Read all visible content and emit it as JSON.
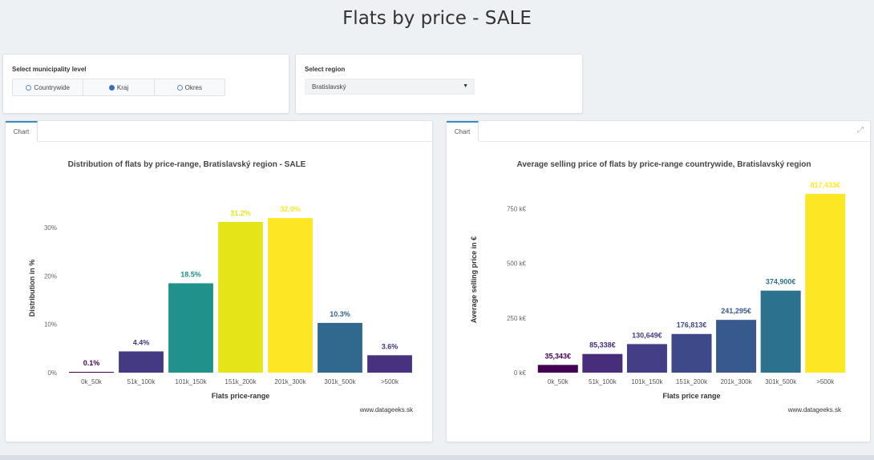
{
  "page_title": "Flats by price - SALE",
  "municipality": {
    "label": "Select municipality level",
    "options": [
      "Countrywide",
      "Kraj",
      "Okres"
    ],
    "selected": "Kraj"
  },
  "region": {
    "label": "Select region",
    "value": "Bratislavský"
  },
  "tabs": {
    "left": "Chart",
    "right": "Chart"
  },
  "chart_data": [
    {
      "type": "bar",
      "title": "Distribution of flats by price-range, Bratislavský region - SALE",
      "xlabel": "Flats price-range",
      "ylabel": "Distribution in %",
      "categories": [
        "0k_50k",
        "51k_100k",
        "101k_150k",
        "151k_200k",
        "201k_300k",
        "301k_500k",
        ">500k"
      ],
      "values": [
        0.1,
        4.4,
        18.5,
        31.2,
        32.0,
        10.3,
        3.6
      ],
      "value_labels": [
        "0.1%",
        "4.4%",
        "18.5%",
        "31.2%",
        "32.0%",
        "10.3%",
        "3.6%"
      ],
      "colors": [
        "#440154",
        "#443983",
        "#21918c",
        "#e5e419",
        "#fde725",
        "#31688e",
        "#46327e"
      ],
      "yticks": [
        0,
        10,
        20,
        30
      ],
      "ytick_labels": [
        "0%",
        "10%",
        "20%",
        "30%"
      ],
      "ylim": [
        0,
        35
      ],
      "caption": "www.datageeks.sk"
    },
    {
      "type": "bar",
      "title": "Average selling price of flats by price-range countrywide, Bratislavský region",
      "xlabel": "Flats price range",
      "ylabel": "Average selling price in €",
      "categories": [
        "0k_50k",
        "51k_100k",
        "101k_150k",
        "151k_200k",
        "201k_300k",
        "301k_500k",
        ">500k"
      ],
      "values": [
        35343,
        85338,
        130649,
        176813,
        241295,
        374900,
        817433
      ],
      "value_labels": [
        "35,343€",
        "85,338€",
        "130,649€",
        "176,813€",
        "241,295€",
        "374,900€",
        "817,433€"
      ],
      "colors": [
        "#440154",
        "#472d7b",
        "#433e85",
        "#3e4989",
        "#38598c",
        "#2c728e",
        "#fde725"
      ],
      "yticks": [
        0,
        250000,
        500000,
        750000
      ],
      "ytick_labels": [
        "0 k€",
        "250 k€",
        "500 k€",
        "750 k€"
      ],
      "ylim": [
        0,
        850000
      ],
      "caption": "www.datageeks.sk"
    }
  ]
}
